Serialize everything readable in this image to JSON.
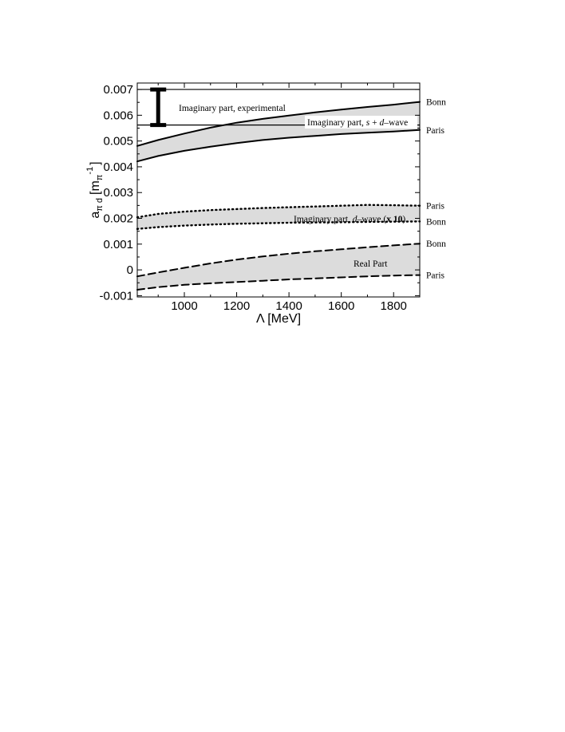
{
  "chart_data": {
    "type": "area",
    "xlabel": "Λ [MeV]",
    "ylabel": {
      "base": "a",
      "sub": "π d",
      "unit_open": "[m",
      "unit_sub": "π",
      "unit_sup": "-1",
      "unit_close": "]"
    },
    "xlim": [
      820,
      1900
    ],
    "ylim": [
      -0.00105,
      0.00725
    ],
    "x_ticks": [
      1000,
      1200,
      1400,
      1600,
      1800
    ],
    "x_tick_labels": [
      "1000",
      "1200",
      "1400",
      "1600",
      "1800"
    ],
    "y_ticks": [
      -0.001,
      0,
      0.001,
      0.002,
      0.003,
      0.004,
      0.005,
      0.006,
      0.007
    ],
    "y_tick_labels": [
      "-0.001",
      "0",
      "0.001",
      "0.002",
      "0.003",
      "0.004",
      "0.005",
      "0.006",
      "0.007"
    ],
    "grid": false,
    "experimental": {
      "label": "Imaginary part, experimental",
      "upper": 0.007,
      "lower": 0.00562,
      "errorbar_x": 900
    },
    "bands": [
      {
        "id": "s_plus_d",
        "label": {
          "pre": "Imaginary part, ",
          "italic1": "s",
          "mid": " + ",
          "italic2": "d",
          "post": "–wave"
        },
        "style": "solid",
        "x": [
          820,
          900,
          1000,
          1100,
          1200,
          1300,
          1400,
          1500,
          1600,
          1700,
          1800,
          1900
        ],
        "upper": [
          0.00481,
          0.00504,
          0.00529,
          0.00552,
          0.00571,
          0.00586,
          0.00599,
          0.00611,
          0.00622,
          0.00632,
          0.00641,
          0.00652
        ],
        "lower": [
          0.00421,
          0.00442,
          0.00462,
          0.00478,
          0.00492,
          0.00504,
          0.00513,
          0.0052,
          0.00527,
          0.00532,
          0.00537,
          0.00543
        ],
        "upper_model": "Bonn",
        "lower_model": "Paris"
      },
      {
        "id": "d_wave_x10",
        "label": {
          "pre": "Imaginary part, ",
          "italic1": "d",
          "post": "–wave (",
          "bold": "x 10",
          "close": ")"
        },
        "style": "dotted",
        "x": [
          820,
          900,
          1000,
          1100,
          1200,
          1300,
          1400,
          1500,
          1600,
          1700,
          1800,
          1900
        ],
        "upper": [
          0.00204,
          0.00217,
          0.00226,
          0.00232,
          0.00236,
          0.0024,
          0.00243,
          0.00246,
          0.00249,
          0.00252,
          0.00251,
          0.00249
        ],
        "lower": [
          0.00159,
          0.00166,
          0.00172,
          0.00176,
          0.00179,
          0.00181,
          0.00183,
          0.00184,
          0.00185,
          0.00186,
          0.00187,
          0.00188
        ],
        "upper_model": "Paris",
        "lower_model": "Bonn"
      },
      {
        "id": "real",
        "label": {
          "pre": "Real Part"
        },
        "style": "dashed",
        "x": [
          820,
          900,
          1000,
          1100,
          1200,
          1300,
          1400,
          1500,
          1600,
          1700,
          1800,
          1900
        ],
        "upper": [
          -0.00025,
          -0.0001,
          8e-05,
          0.00025,
          0.0004,
          0.00052,
          0.00063,
          0.00072,
          0.0008,
          0.00088,
          0.00095,
          0.00102
        ],
        "lower": [
          -0.00077,
          -0.00067,
          -0.00058,
          -0.00052,
          -0.00047,
          -0.00042,
          -0.00037,
          -0.00033,
          -0.00029,
          -0.00025,
          -0.00022,
          -0.0002
        ],
        "upper_model": "Bonn",
        "lower_model": "Paris"
      }
    ]
  }
}
